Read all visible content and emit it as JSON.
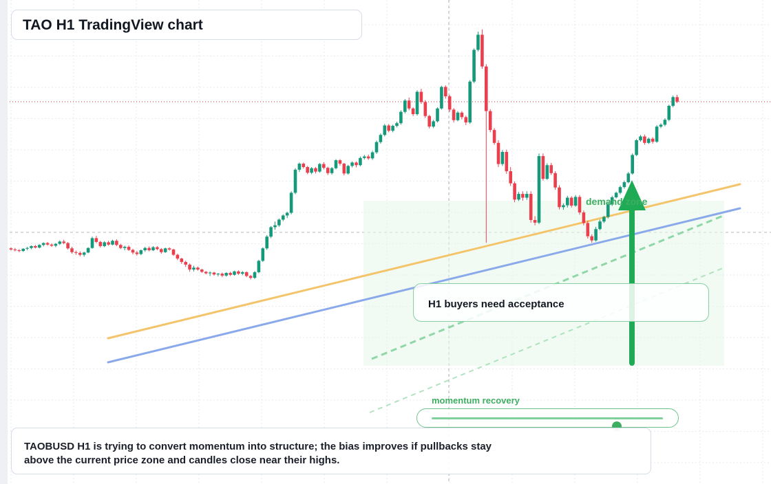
{
  "title": "TAO H1 TradingView chart",
  "summary": "TAOBUSD H1 is trying to convert momentum into structure; the bias improves if pullbacks stay above the current price zone and candles close near their highs.",
  "callout": "H1 buyers need acceptance",
  "momentum": {
    "label": "momentum recovery",
    "value": 0.8
  },
  "zone_label": "demand zone",
  "colors": {
    "up": "#16997a",
    "down": "#e8404f",
    "ma_fast": "#f4c46b",
    "ma_slow": "#8aa9ea",
    "accent": "#27a84f",
    "last_price": "#e04a57"
  },
  "chart_data": {
    "type": "candlestick",
    "symbol": "TAOBUSD",
    "timeframe": "H1",
    "candles": [
      [
        64.5,
        64.8,
        63.9,
        64.2
      ],
      [
        64.2,
        64.6,
        63.7,
        64.0
      ],
      [
        64.0,
        64.3,
        63.5,
        63.8
      ],
      [
        63.8,
        64.5,
        63.6,
        64.4
      ],
      [
        64.4,
        64.9,
        64.0,
        64.6
      ],
      [
        64.6,
        65.3,
        64.3,
        65.1
      ],
      [
        65.1,
        65.4,
        64.5,
        64.7
      ],
      [
        64.7,
        65.6,
        64.5,
        65.4
      ],
      [
        65.4,
        66.1,
        65.0,
        65.9
      ],
      [
        65.9,
        66.2,
        65.2,
        65.5
      ],
      [
        65.5,
        65.8,
        64.9,
        65.2
      ],
      [
        65.2,
        65.9,
        64.8,
        65.7
      ],
      [
        65.7,
        66.6,
        65.4,
        66.3
      ],
      [
        66.3,
        66.8,
        65.6,
        65.9
      ],
      [
        65.9,
        66.2,
        64.2,
        64.5
      ],
      [
        64.5,
        64.9,
        63.1,
        63.5
      ],
      [
        63.5,
        63.9,
        62.8,
        63.3
      ],
      [
        63.3,
        63.7,
        62.4,
        62.8
      ],
      [
        62.8,
        63.6,
        62.3,
        63.4
      ],
      [
        63.4,
        64.8,
        63.2,
        64.6
      ],
      [
        64.6,
        67.6,
        64.4,
        67.2
      ],
      [
        67.2,
        67.8,
        65.9,
        66.2
      ],
      [
        66.2,
        66.5,
        64.7,
        65.1
      ],
      [
        65.1,
        66.4,
        64.8,
        66.1
      ],
      [
        66.1,
        66.5,
        65.2,
        65.5
      ],
      [
        65.5,
        66.8,
        65.3,
        66.5
      ],
      [
        66.5,
        66.9,
        65.1,
        65.4
      ],
      [
        65.4,
        65.7,
        64.3,
        64.6
      ],
      [
        64.6,
        65.2,
        64.0,
        64.9
      ],
      [
        64.9,
        65.3,
        63.8,
        64.1
      ],
      [
        64.1,
        64.4,
        62.9,
        63.4
      ],
      [
        63.4,
        63.8,
        62.6,
        63.0
      ],
      [
        63.0,
        64.2,
        62.7,
        64.0
      ],
      [
        64.0,
        64.9,
        63.6,
        64.6
      ],
      [
        64.6,
        65.0,
        63.7,
        64.0
      ],
      [
        64.0,
        65.1,
        63.8,
        64.8
      ],
      [
        64.8,
        65.1,
        64.0,
        64.3
      ],
      [
        64.3,
        64.6,
        63.1,
        63.5
      ],
      [
        63.5,
        64.7,
        63.3,
        64.5
      ],
      [
        64.5,
        64.8,
        63.9,
        64.2
      ],
      [
        64.2,
        64.4,
        62.5,
        62.8
      ],
      [
        62.8,
        63.1,
        61.4,
        61.8
      ],
      [
        61.8,
        62.0,
        60.4,
        60.9
      ],
      [
        60.9,
        61.2,
        59.6,
        60.2
      ],
      [
        60.2,
        60.5,
        58.3,
        58.9
      ],
      [
        58.9,
        59.9,
        58.4,
        59.4
      ],
      [
        59.4,
        59.7,
        58.6,
        58.9
      ],
      [
        58.9,
        59.1,
        58.0,
        58.3
      ],
      [
        58.3,
        58.5,
        57.6,
        57.9
      ],
      [
        57.9,
        58.4,
        57.2,
        58.1
      ],
      [
        58.1,
        58.3,
        57.3,
        57.6
      ],
      [
        57.6,
        58.0,
        57.1,
        57.8
      ],
      [
        57.8,
        58.1,
        56.9,
        57.3
      ],
      [
        57.3,
        58.2,
        57.0,
        58.0
      ],
      [
        58.0,
        58.3,
        57.2,
        57.5
      ],
      [
        57.5,
        58.6,
        57.3,
        58.4
      ],
      [
        58.4,
        58.7,
        57.5,
        57.8
      ],
      [
        57.8,
        58.5,
        57.4,
        58.2
      ],
      [
        58.2,
        58.4,
        56.9,
        57.2
      ],
      [
        57.2,
        57.5,
        56.3,
        56.7
      ],
      [
        56.7,
        58.5,
        56.4,
        58.2
      ],
      [
        58.2,
        61.5,
        57.9,
        61.2
      ],
      [
        61.2,
        64.8,
        60.9,
        64.5
      ],
      [
        64.5,
        68.0,
        64.1,
        67.6
      ],
      [
        67.6,
        70.4,
        67.2,
        70.1
      ],
      [
        70.1,
        71.6,
        69.4,
        70.6
      ],
      [
        70.6,
        72.4,
        70.2,
        72.1
      ],
      [
        72.1,
        73.5,
        71.7,
        73.2
      ],
      [
        73.2,
        74.2,
        72.5,
        73.9
      ],
      [
        73.9,
        79.6,
        73.5,
        79.2
      ],
      [
        79.2,
        85.7,
        78.8,
        85.3
      ],
      [
        85.3,
        87.2,
        84.7,
        86.9
      ],
      [
        86.9,
        87.2,
        85.6,
        86.0
      ],
      [
        86.0,
        86.3,
        84.1,
        84.5
      ],
      [
        84.5,
        86.0,
        84.1,
        85.7
      ],
      [
        85.7,
        86.0,
        84.3,
        84.8
      ],
      [
        84.8,
        87.1,
        84.5,
        86.8
      ],
      [
        86.8,
        87.3,
        85.4,
        85.8
      ],
      [
        85.8,
        86.1,
        83.9,
        84.4
      ],
      [
        84.4,
        86.0,
        84.0,
        85.7
      ],
      [
        85.7,
        88.1,
        85.4,
        87.8
      ],
      [
        87.8,
        88.1,
        86.4,
        86.9
      ],
      [
        86.9,
        87.1,
        83.8,
        84.3
      ],
      [
        84.3,
        86.6,
        84.0,
        86.3
      ],
      [
        86.3,
        87.5,
        85.9,
        87.2
      ],
      [
        87.2,
        87.5,
        85.9,
        86.5
      ],
      [
        86.5,
        88.8,
        86.2,
        88.4
      ],
      [
        88.4,
        89.2,
        88.0,
        88.8
      ],
      [
        88.8,
        89.3,
        87.9,
        88.3
      ],
      [
        88.3,
        90.3,
        87.9,
        89.9
      ],
      [
        89.9,
        93.0,
        89.5,
        92.6
      ],
      [
        92.6,
        94.9,
        92.2,
        94.5
      ],
      [
        94.5,
        97.4,
        94.1,
        97.0
      ],
      [
        97.0,
        97.4,
        95.2,
        95.6
      ],
      [
        95.6,
        97.2,
        95.2,
        96.9
      ],
      [
        96.9,
        98.0,
        96.5,
        97.6
      ],
      [
        97.6,
        101.0,
        97.2,
        100.6
      ],
      [
        100.6,
        104.0,
        100.2,
        103.6
      ],
      [
        103.6,
        104.4,
        101.0,
        101.5
      ],
      [
        101.5,
        101.8,
        99.5,
        100.0
      ],
      [
        100.0,
        106.3,
        99.6,
        105.9
      ],
      [
        105.9,
        106.7,
        102.7,
        103.2
      ],
      [
        103.2,
        103.7,
        99.0,
        99.5
      ],
      [
        99.5,
        99.8,
        96.2,
        96.7
      ],
      [
        96.7,
        98.5,
        96.3,
        98.1
      ],
      [
        98.1,
        101.8,
        97.8,
        101.5
      ],
      [
        101.5,
        107.5,
        101.2,
        107.2
      ],
      [
        107.2,
        107.6,
        104.1,
        104.7
      ],
      [
        104.7,
        105.1,
        100.6,
        101.2
      ],
      [
        101.2,
        101.6,
        97.8,
        98.4
      ],
      [
        98.4,
        100.8,
        98.1,
        100.4
      ],
      [
        100.4,
        100.8,
        98.6,
        99.2
      ],
      [
        99.2,
        99.6,
        97.1,
        97.8
      ],
      [
        97.8,
        109.0,
        97.4,
        108.6
      ],
      [
        108.6,
        117.4,
        108.2,
        117.0
      ],
      [
        117.0,
        121.8,
        116.6,
        121.0
      ],
      [
        121.0,
        122.4,
        112.0,
        112.6
      ],
      [
        112.6,
        113.2,
        66.0,
        100.8
      ],
      [
        100.8,
        101.3,
        95.2,
        95.8
      ],
      [
        95.8,
        96.3,
        91.9,
        92.4
      ],
      [
        92.4,
        93.1,
        86.0,
        86.8
      ],
      [
        86.8,
        90.5,
        86.3,
        90.0
      ],
      [
        90.0,
        90.6,
        84.2,
        84.9
      ],
      [
        84.9,
        86.0,
        81.0,
        81.7
      ],
      [
        81.7,
        82.2,
        76.7,
        77.4
      ],
      [
        77.4,
        79.4,
        77.0,
        78.9
      ],
      [
        78.9,
        79.6,
        77.1,
        77.9
      ],
      [
        77.9,
        79.6,
        77.3,
        78.9
      ],
      [
        78.9,
        79.6,
        71.3,
        72.0
      ],
      [
        72.0,
        73.0,
        70.6,
        71.3
      ],
      [
        71.3,
        89.6,
        70.9,
        88.9
      ],
      [
        88.9,
        89.6,
        82.4,
        82.9
      ],
      [
        82.9,
        87.0,
        82.6,
        86.5
      ],
      [
        86.5,
        87.1,
        83.9,
        84.4
      ],
      [
        84.4,
        84.9,
        80.0,
        80.6
      ],
      [
        80.6,
        81.2,
        74.8,
        75.4
      ],
      [
        75.4,
        76.4,
        74.7,
        75.9
      ],
      [
        75.9,
        78.4,
        75.3,
        77.9
      ],
      [
        77.9,
        78.3,
        75.3,
        75.8
      ],
      [
        75.8,
        78.6,
        75.5,
        78.1
      ],
      [
        78.1,
        78.6,
        73.4,
        74.0
      ],
      [
        74.0,
        74.5,
        70.6,
        71.2
      ],
      [
        71.2,
        71.8,
        67.1,
        67.7
      ],
      [
        67.7,
        68.2,
        66.0,
        66.6
      ],
      [
        66.6,
        70.2,
        66.3,
        69.6
      ],
      [
        69.6,
        72.1,
        69.3,
        71.6
      ],
      [
        71.6,
        73.1,
        71.2,
        72.8
      ],
      [
        72.8,
        76.6,
        72.4,
        76.1
      ],
      [
        76.1,
        78.4,
        75.7,
        78.0
      ],
      [
        78.0,
        79.5,
        77.7,
        79.2
      ],
      [
        79.2,
        81.1,
        78.8,
        80.7
      ],
      [
        80.7,
        82.4,
        80.3,
        82.0
      ],
      [
        82.0,
        84.7,
        81.7,
        84.3
      ],
      [
        84.3,
        89.6,
        84.0,
        89.2
      ],
      [
        89.2,
        93.4,
        88.9,
        93.1
      ],
      [
        93.1,
        94.5,
        92.7,
        94.1
      ],
      [
        94.1,
        94.6,
        91.9,
        92.4
      ],
      [
        92.4,
        93.8,
        92.1,
        93.5
      ],
      [
        93.5,
        93.9,
        92.2,
        92.7
      ],
      [
        92.7,
        97.1,
        92.4,
        96.7
      ],
      [
        96.7,
        97.6,
        96.3,
        97.2
      ],
      [
        97.2,
        98.9,
        96.8,
        98.5
      ],
      [
        98.5,
        102.5,
        98.1,
        102.2
      ],
      [
        102.2,
        104.9,
        101.8,
        104.5
      ],
      [
        104.5,
        105.1,
        102.9,
        103.3
      ]
    ],
    "overlays": [
      "ma_fast",
      "ma_slow",
      "rising_channel",
      "demand_zone",
      "last_price_line"
    ],
    "grid": true
  }
}
